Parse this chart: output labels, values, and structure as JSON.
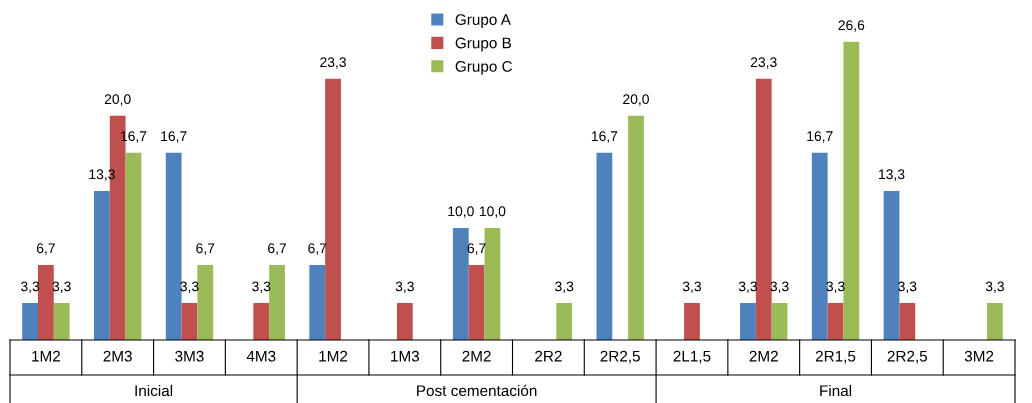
{
  "chart_data": {
    "type": "bar",
    "categories": [
      "1M2",
      "2M3",
      "3M3",
      "4M3",
      "1M2",
      "1M3",
      "2M2",
      "2R2",
      "2R2,5",
      "2L1,5",
      "2M2",
      "2R1,5",
      "2R2,5",
      "3M2"
    ],
    "series": [
      {
        "name": "Grupo A",
        "color": "#4f81bd",
        "values": [
          3.3,
          13.3,
          16.7,
          null,
          6.7,
          null,
          10.0,
          null,
          16.7,
          null,
          3.3,
          16.7,
          13.3,
          null
        ],
        "value_labels": [
          "3,3",
          "13,3",
          "16,7",
          null,
          "6,7",
          null,
          "10,0",
          null,
          "16,7",
          null,
          "3,3",
          "16,7",
          "13,3",
          null
        ]
      },
      {
        "name": "Grupo B",
        "color": "#c0504d",
        "values": [
          6.7,
          20.0,
          3.3,
          3.3,
          23.3,
          3.3,
          6.7,
          null,
          null,
          3.3,
          23.3,
          3.3,
          3.3,
          null
        ],
        "value_labels": [
          "6,7",
          "20,0",
          "3,3",
          "3,3",
          "23,3",
          "3,3",
          "6,7",
          null,
          null,
          "3,3",
          "23,3",
          "3,3",
          "3,3",
          null
        ]
      },
      {
        "name": "Grupo C",
        "color": "#9bbb59",
        "values": [
          3.3,
          16.7,
          6.7,
          6.7,
          null,
          null,
          10.0,
          3.3,
          20.0,
          null,
          3.3,
          26.6,
          null,
          3.3
        ],
        "value_labels": [
          "3,3",
          "16,7",
          "6,7",
          "6,7",
          null,
          null,
          "10,0",
          "3,3",
          "20,0",
          null,
          "3,3",
          "26,6",
          null,
          "3,3"
        ]
      }
    ],
    "annotations": [
      "Inicial",
      "Post cementación",
      "Final"
    ],
    "legend": "top"
  }
}
